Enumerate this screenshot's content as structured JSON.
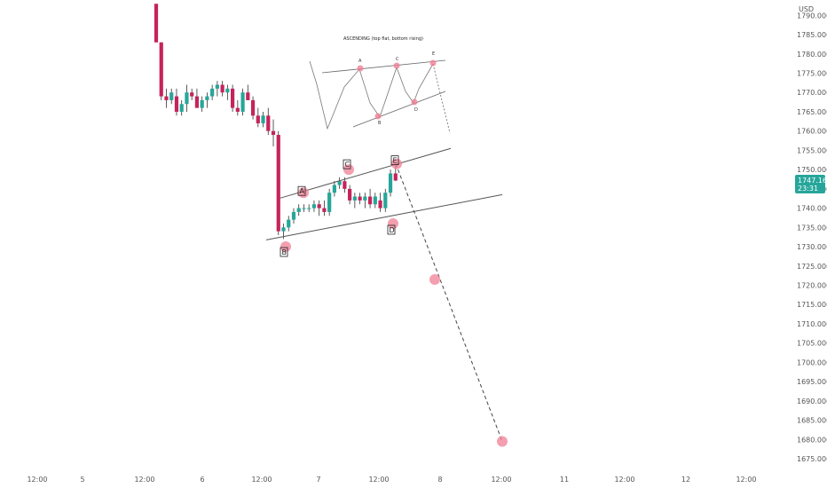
{
  "chart_data": {
    "type": "candlestick",
    "currency": "USD",
    "current_price": "1747.165",
    "countdown": "23:31",
    "y_ticks": [
      "1790.000",
      "1785.000",
      "1780.000",
      "1775.000",
      "1770.000",
      "1765.000",
      "1760.000",
      "1755.000",
      "1750.000",
      "1745.000",
      "1740.000",
      "1735.000",
      "1730.000",
      "1725.000",
      "1720.000",
      "1715.000",
      "1710.000",
      "1705.000",
      "1700.000",
      "1695.000",
      "1690.000",
      "1685.000",
      "1680.000",
      "1675.000"
    ],
    "x_ticks": [
      "12:00",
      "5",
      "12:00",
      "6",
      "12:00",
      "7",
      "12:00",
      "8",
      "12:00",
      "11",
      "12:00",
      "12",
      "12:00"
    ],
    "ylim": [
      1673,
      1793
    ],
    "candles": [
      [
        1793,
        1793,
        1783,
        1783
      ],
      [
        1783,
        1783,
        1768,
        1769
      ],
      [
        1769,
        1771,
        1766,
        1768
      ],
      [
        1768,
        1771,
        1767,
        1770
      ],
      [
        1769,
        1771,
        1764,
        1765
      ],
      [
        1765,
        1768,
        1764,
        1767
      ],
      [
        1767,
        1772,
        1765,
        1770
      ],
      [
        1770,
        1771,
        1768,
        1769
      ],
      [
        1769,
        1771,
        1766,
        1766
      ],
      [
        1766,
        1769,
        1765,
        1768
      ],
      [
        1768,
        1770,
        1766,
        1769
      ],
      [
        1769,
        1772,
        1768,
        1771
      ],
      [
        1771,
        1773,
        1769,
        1772
      ],
      [
        1772,
        1773,
        1769,
        1770
      ],
      [
        1770,
        1772,
        1768,
        1771
      ],
      [
        1771,
        1772,
        1765,
        1766
      ],
      [
        1766,
        1768,
        1764,
        1765
      ],
      [
        1765,
        1771,
        1764,
        1770
      ],
      [
        1770,
        1772,
        1768,
        1768
      ],
      [
        1768,
        1769,
        1763,
        1764
      ],
      [
        1764,
        1766,
        1761,
        1762
      ],
      [
        1762,
        1765,
        1761,
        1764
      ],
      [
        1764,
        1766,
        1759,
        1760
      ],
      [
        1760,
        1763,
        1756,
        1759
      ],
      [
        1759,
        1760,
        1733,
        1734
      ],
      [
        1734,
        1736,
        1732,
        1735
      ],
      [
        1735,
        1738,
        1734,
        1737
      ],
      [
        1737,
        1740,
        1736,
        1739
      ],
      [
        1739,
        1741,
        1738,
        1740
      ],
      [
        1740,
        1741,
        1739,
        1740
      ],
      [
        1740,
        1741,
        1739,
        1740
      ],
      [
        1740,
        1742,
        1739,
        1741
      ],
      [
        1741,
        1742,
        1738,
        1740
      ],
      [
        1740,
        1742,
        1738,
        1739
      ],
      [
        1739,
        1745,
        1738,
        1744
      ],
      [
        1744,
        1747,
        1743,
        1746
      ],
      [
        1746,
        1748,
        1745,
        1747
      ],
      [
        1747,
        1748,
        1744,
        1745
      ],
      [
        1745,
        1746,
        1741,
        1742
      ],
      [
        1742,
        1744,
        1740,
        1743
      ],
      [
        1743,
        1744,
        1741,
        1742
      ],
      [
        1742,
        1744,
        1740,
        1743
      ],
      [
        1743,
        1745,
        1740,
        1741
      ],
      [
        1741,
        1744,
        1740,
        1743
      ],
      [
        1742,
        1744,
        1739,
        1740
      ],
      [
        1740,
        1745,
        1739,
        1744
      ],
      [
        1744,
        1750,
        1743,
        1749
      ],
      [
        1749,
        1751,
        1747,
        1747.165
      ]
    ],
    "wave_labels": [
      {
        "label": "A",
        "price": 1744
      },
      {
        "label": "B",
        "price": 1730
      },
      {
        "label": "C",
        "price": 1750
      },
      {
        "label": "D",
        "price": 1736
      },
      {
        "label": "E",
        "price": 1751.5
      }
    ],
    "projection_prices": [
      1751.5,
      1721.5,
      1679.5
    ],
    "upper_line_prices": [
      1744,
      1755.5
    ],
    "lower_line_prices": [
      1732,
      1743.5
    ],
    "inset": {
      "title": "ASCENDING (top flat, bottom rising)",
      "labels": [
        "A",
        "B",
        "C",
        "D",
        "E"
      ]
    },
    "colors": {
      "up": "#26a69a",
      "down": "#c5245a",
      "marker": "#f07f95",
      "price_box": "#26a69a"
    }
  }
}
